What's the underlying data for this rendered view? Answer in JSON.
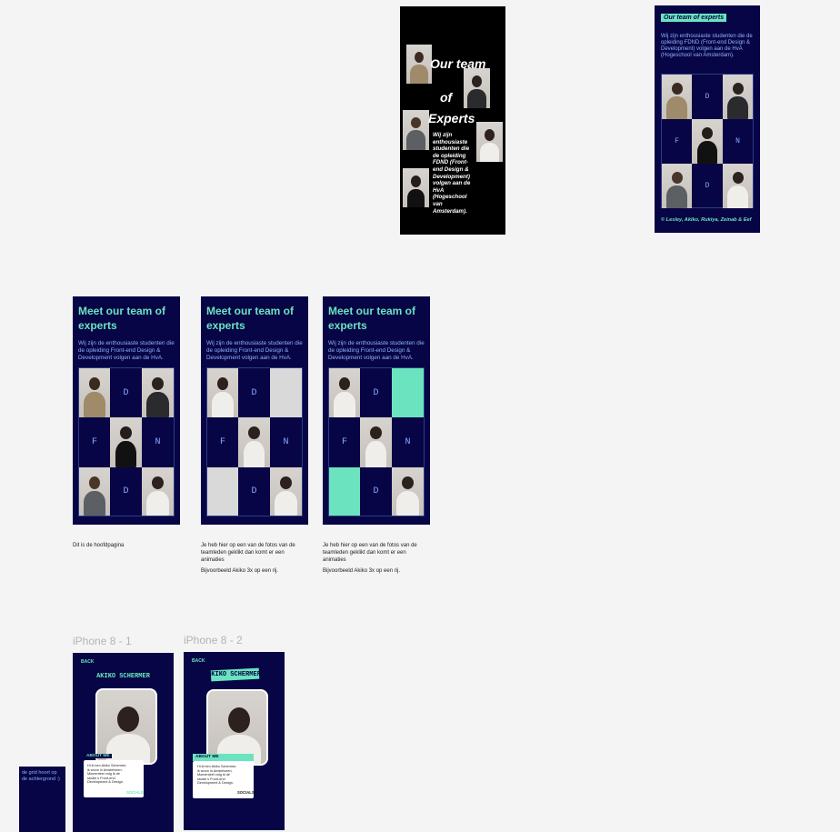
{
  "frames": {
    "hero_black": {
      "title_lines": [
        "Our team",
        "of",
        "Experts"
      ],
      "body": "Wij zijn enthousiaste studenten die de opleiding FDND (Front-end Design & Development) volgen aan de HvA (Hogeschool van Amsterdam)."
    },
    "team_small": {
      "title": "Our team of experts",
      "body": "Wij zijn enthousiaste studenten die de opleiding FDND (Front-end Design & Development) volgen aan de HvA (Hogeschool van Amsterdam).",
      "tiles": [
        "D",
        "F",
        "N",
        "D"
      ],
      "footer": "© Lesley, Akiko, Rukiya, Zeinab & Eef"
    },
    "meet": {
      "title": "Meet our team of experts",
      "body": "Wij zijn de enthousiaste studenten die de opleiding Front-end Design & Development volgen aan de HvA.",
      "tiles": [
        "D",
        "F",
        "N",
        "D"
      ]
    },
    "detail": {
      "back": "BACK",
      "name": "AKIKO SCHERMER",
      "about_label": "ABOUT ME",
      "about_text": "Hi ik ben Akiko Schermer, ik woon in Amstelveen. Momenteel volg ik de studie s Front-end Development & Design.",
      "socials": "SOCIALS"
    }
  },
  "notes": {
    "main": "Dit is de hoofdpagina",
    "click_desc": "Je heb hier op een van de fotos van de teamleden geklikt dan komt er een animaties",
    "example": "Bijvoorbeeld Akiko 3x op een rij.",
    "grid_note": "de grid hoort op de achtergrond :)"
  },
  "frame_labels": {
    "iphone1": "iPhone 8 - 1",
    "iphone2": "iPhone 8 - 2"
  },
  "colors": {
    "navy": "#070545",
    "mint": "#6be3bf",
    "canvas": "#f4f4f5"
  }
}
